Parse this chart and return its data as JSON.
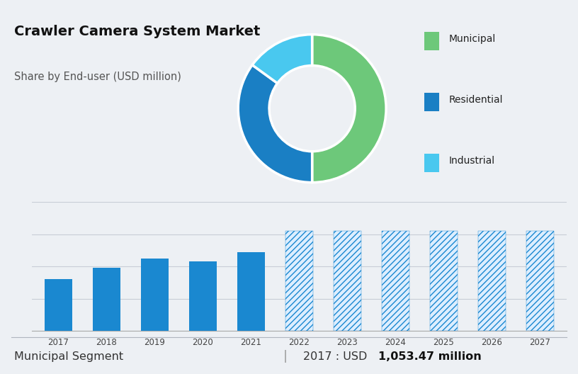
{
  "title": "Crawler Camera System Market",
  "subtitle": "Share by End-user (USD million)",
  "donut_labels": [
    "Municipal",
    "Residential",
    "Industrial"
  ],
  "donut_sizes": [
    50,
    35,
    15
  ],
  "donut_colors": [
    "#6dc87a",
    "#1a7fc4",
    "#49c8ef"
  ],
  "bar_years_solid": [
    2017,
    2018,
    2019,
    2020,
    2021
  ],
  "bar_years_hatched": [
    2022,
    2023,
    2024,
    2025,
    2026,
    2027
  ],
  "bar_values_solid": [
    3.2,
    3.9,
    4.5,
    4.3,
    4.9
  ],
  "bar_values_hatched": [
    6.2,
    6.2,
    6.2,
    6.2,
    6.2,
    6.2
  ],
  "bar_color_solid": "#1a88d0",
  "bar_color_hatched_edge": "#1a88d0",
  "bar_color_hatched_face": "#ddeeff",
  "hatch_pattern": "////",
  "top_bg_color": "#ccd5e0",
  "bottom_bg_color": "#edf0f4",
  "footer_text_left": "Municipal Segment",
  "footer_text_divider": "|",
  "footer_text_year": "2017 : USD ",
  "footer_text_value": "1,053.47 million",
  "grid_color": "#c8cdd6",
  "title_fontsize": 14,
  "subtitle_fontsize": 10.5,
  "bar_ylim": [
    0,
    8
  ],
  "legend_square_size": 0.09
}
